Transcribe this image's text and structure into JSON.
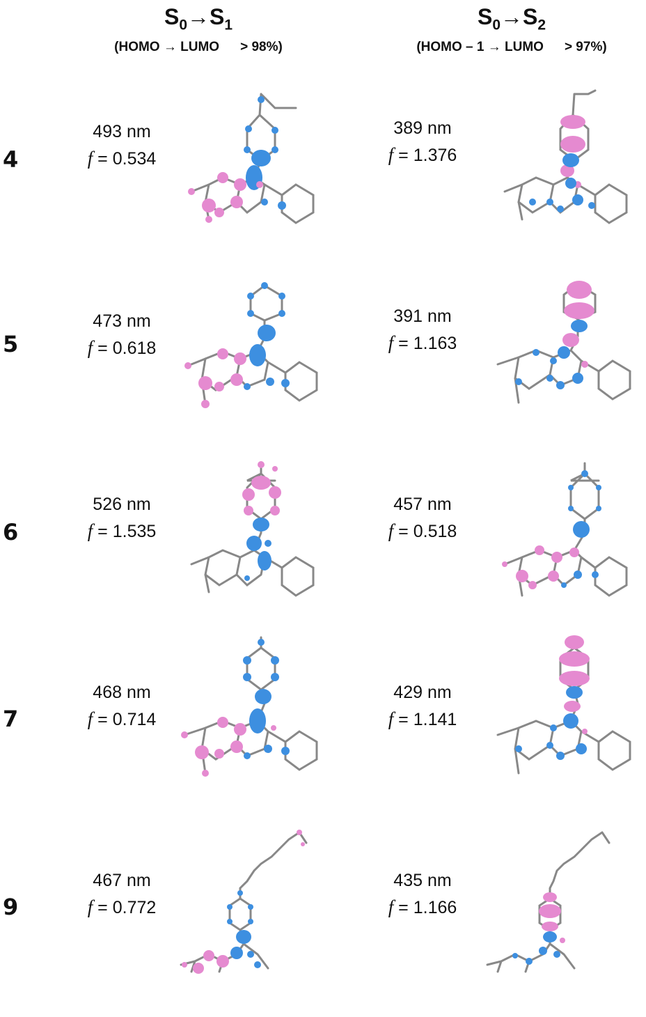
{
  "headers": [
    {
      "main": "S",
      "sub1": "0",
      "arrow": "→",
      "main2": "S",
      "sub2": "1",
      "subtitle": "(HOMO → LUMO",
      "percent": "> 98%)"
    },
    {
      "main": "S",
      "sub1": "0",
      "arrow": "→",
      "main2": "S",
      "sub2": "2",
      "subtitle": "(HOMO – 1 → LUMO",
      "percent": "> 97%)"
    }
  ],
  "f_symbol": "f",
  "rows": [
    {
      "compound": "4",
      "s1": {
        "wavelength": "493 nm",
        "f": "= 0.534"
      },
      "s2": {
        "wavelength": "389 nm",
        "f": "= 1.376"
      }
    },
    {
      "compound": "5",
      "s1": {
        "wavelength": "473 nm",
        "f": "= 0.618"
      },
      "s2": {
        "wavelength": "391 nm",
        "f": "= 1.163"
      }
    },
    {
      "compound": "6",
      "s1": {
        "wavelength": "526 nm",
        "f": "= 1.535"
      },
      "s2": {
        "wavelength": "457 nm",
        "f": "= 0.518"
      }
    },
    {
      "compound": "7",
      "s1": {
        "wavelength": "468 nm",
        "f": "= 0.714"
      },
      "s2": {
        "wavelength": "429 nm",
        "f": "= 1.141"
      }
    },
    {
      "compound": "9",
      "s1": {
        "wavelength": "467 nm",
        "f": "= 0.772"
      },
      "s2": {
        "wavelength": "435 nm",
        "f": "= 1.166"
      }
    }
  ],
  "colors": {
    "pink_lobe": "#e58ad0",
    "blue_lobe": "#3d8fe0",
    "bond": "#888888",
    "nitrogen": "#2b4fcf",
    "hydrogen": "#d9d9d9"
  }
}
